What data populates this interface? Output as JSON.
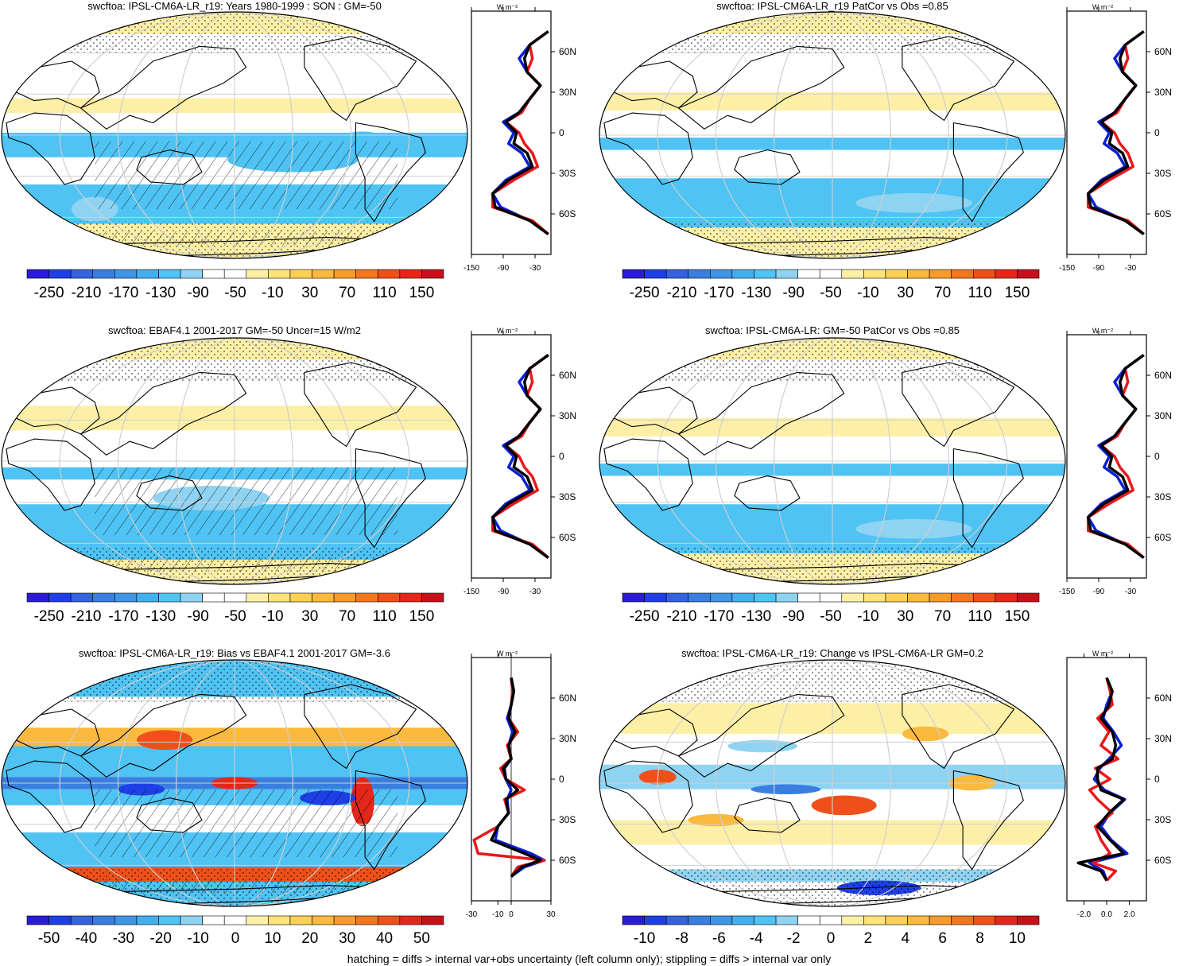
{
  "figure": {
    "footer": "hatching = diffs > internal var+obs uncertainty (left column only); stippling = diffs > internal var only",
    "colorbar_colors": [
      "#2b1bd6",
      "#1f3fe6",
      "#3563e0",
      "#3a7fdf",
      "#3f95e6",
      "#43b0ee",
      "#4fc3f3",
      "#8fd3f2",
      "#ffffff",
      "#ffffff",
      "#fdf0a6",
      "#fde37a",
      "#fccf55",
      "#fbb93d",
      "#f99b2b",
      "#f5761f",
      "#ef5019",
      "#e3281a",
      "#c8101a"
    ],
    "profile_colors": {
      "model": "#0a1fd6",
      "obs": "#e8181a",
      "ensemble": "#000000"
    }
  },
  "chart_data": [
    {
      "type": "heatmap",
      "id": "p1",
      "title": "swcftoa: IPSL-CM6A-LR_r19: Years 1980-1999 : SON : GM=-50",
      "map_style": "mean",
      "hatching": true,
      "colorbar_ticks": [
        "-250",
        "-210",
        "-170",
        "-130",
        "-90",
        "-50",
        "-10",
        "30",
        "70",
        "110",
        "150"
      ],
      "profile": {
        "units": "W m⁻²",
        "xlim": [
          -150,
          0
        ],
        "xticks": [
          "-150",
          "-90",
          "-30"
        ],
        "xtick_values": [
          -150,
          -90,
          -30
        ],
        "ylabels": [
          "60N",
          "30N",
          "0",
          "30S",
          "60S"
        ],
        "ylabel_lats": [
          60,
          30,
          0,
          -30,
          -60
        ],
        "zero_line": false,
        "lat": [
          75,
          65,
          55,
          45,
          35,
          25,
          15,
          8,
          0,
          -8,
          -15,
          -25,
          -35,
          -45,
          -55,
          -65,
          -75
        ],
        "model": [
          -5,
          -40,
          -60,
          -45,
          -20,
          -40,
          -60,
          -90,
          -70,
          -80,
          -55,
          -40,
          -85,
          -110,
          -95,
          -40,
          -5
        ],
        "obs": [
          -5,
          -40,
          -35,
          -45,
          -20,
          -40,
          -55,
          -85,
          -60,
          -50,
          -35,
          -25,
          -70,
          -110,
          -110,
          -35,
          -5
        ],
        "ensemble": [
          -5,
          -40,
          -50,
          -45,
          -20,
          -40,
          -60,
          -85,
          -65,
          -70,
          -45,
          -35,
          -80,
          -110,
          -105,
          -40,
          -5
        ]
      }
    },
    {
      "type": "heatmap",
      "id": "p2",
      "title": "swcftoa: IPSL-CM6A-LR_r19 PatCor vs Obs =0.85",
      "map_style": "ensemble",
      "hatching": false,
      "colorbar_ticks": [
        "-250",
        "-210",
        "-170",
        "-130",
        "-90",
        "-50",
        "-10",
        "30",
        "70",
        "110",
        "150"
      ],
      "profile": {
        "units": "W m⁻²",
        "xlim": [
          -150,
          0
        ],
        "xticks": [
          "-150",
          "-90",
          "-30"
        ],
        "xtick_values": [
          -150,
          -90,
          -30
        ],
        "ylabels": [
          "60N",
          "30N",
          "0",
          "30S",
          "60S"
        ],
        "ylabel_lats": [
          60,
          30,
          0,
          -30,
          -60
        ],
        "zero_line": false,
        "lat": [
          75,
          65,
          55,
          45,
          35,
          25,
          15,
          8,
          0,
          -8,
          -15,
          -25,
          -35,
          -45,
          -55,
          -65,
          -75
        ],
        "model": [
          -5,
          -40,
          -60,
          -45,
          -20,
          -40,
          -60,
          -90,
          -70,
          -80,
          -55,
          -40,
          -85,
          -110,
          -95,
          -40,
          -5
        ],
        "obs": [
          -5,
          -40,
          -35,
          -45,
          -20,
          -40,
          -55,
          -85,
          -60,
          -50,
          -35,
          -25,
          -70,
          -110,
          -110,
          -35,
          -5
        ],
        "ensemble": [
          -5,
          -40,
          -50,
          -45,
          -20,
          -40,
          -60,
          -85,
          -65,
          -70,
          -45,
          -35,
          -80,
          -110,
          -105,
          -40,
          -5
        ]
      }
    },
    {
      "type": "heatmap",
      "id": "p3",
      "title": "swcftoa: EBAF4.1 2001-2017 GM=-50 Uncer=15 W/m2",
      "map_style": "obs",
      "hatching": true,
      "colorbar_ticks": [
        "-250",
        "-210",
        "-170",
        "-130",
        "-90",
        "-50",
        "-10",
        "30",
        "70",
        "110",
        "150"
      ],
      "profile": {
        "units": "W m⁻²",
        "xlim": [
          -150,
          0
        ],
        "xticks": [
          "-150",
          "-90",
          "-30"
        ],
        "xtick_values": [
          -150,
          -90,
          -30
        ],
        "ylabels": [
          "60N",
          "30N",
          "0",
          "30S",
          "60S"
        ],
        "ylabel_lats": [
          60,
          30,
          0,
          -30,
          -60
        ],
        "zero_line": false,
        "lat": [
          75,
          65,
          55,
          45,
          35,
          25,
          15,
          8,
          0,
          -8,
          -15,
          -25,
          -35,
          -45,
          -55,
          -65,
          -75
        ],
        "model": [
          -5,
          -40,
          -60,
          -45,
          -20,
          -40,
          -60,
          -90,
          -70,
          -80,
          -55,
          -40,
          -85,
          -110,
          -95,
          -40,
          -5
        ],
        "obs": [
          -5,
          -40,
          -35,
          -45,
          -20,
          -40,
          -55,
          -85,
          -60,
          -50,
          -35,
          -25,
          -70,
          -110,
          -110,
          -35,
          -5
        ],
        "ensemble": [
          -5,
          -40,
          -50,
          -45,
          -20,
          -40,
          -60,
          -85,
          -65,
          -70,
          -45,
          -35,
          -80,
          -110,
          -105,
          -40,
          -5
        ]
      }
    },
    {
      "type": "heatmap",
      "id": "p4",
      "title": "swcftoa: IPSL-CM6A-LR: GM=-50 PatCor vs Obs =0.85",
      "map_style": "ensemble",
      "hatching": false,
      "colorbar_ticks": [
        "-250",
        "-210",
        "-170",
        "-130",
        "-90",
        "-50",
        "-10",
        "30",
        "70",
        "110",
        "150"
      ],
      "profile": {
        "units": "W m⁻²",
        "xlim": [
          -150,
          0
        ],
        "xticks": [
          "-150",
          "-90",
          "-30"
        ],
        "xtick_values": [
          -150,
          -90,
          -30
        ],
        "ylabels": [
          "60N",
          "30N",
          "0",
          "30S",
          "60S"
        ],
        "ylabel_lats": [
          60,
          30,
          0,
          -30,
          -60
        ],
        "zero_line": false,
        "lat": [
          75,
          65,
          55,
          45,
          35,
          25,
          15,
          8,
          0,
          -8,
          -15,
          -25,
          -35,
          -45,
          -55,
          -65,
          -75
        ],
        "model": [
          -5,
          -40,
          -60,
          -45,
          -20,
          -40,
          -60,
          -90,
          -70,
          -80,
          -55,
          -40,
          -85,
          -110,
          -95,
          -40,
          -5
        ],
        "obs": [
          -5,
          -40,
          -35,
          -45,
          -20,
          -40,
          -55,
          -85,
          -60,
          -50,
          -35,
          -25,
          -70,
          -110,
          -110,
          -35,
          -5
        ],
        "ensemble": [
          -5,
          -40,
          -50,
          -45,
          -20,
          -40,
          -60,
          -85,
          -65,
          -70,
          -45,
          -35,
          -80,
          -110,
          -105,
          -40,
          -5
        ]
      }
    },
    {
      "type": "heatmap",
      "id": "p5",
      "title": "swcftoa: IPSL-CM6A-LR_r19: Bias vs EBAF4.1 2001-2017  GM=-3.6",
      "map_style": "bias",
      "hatching": true,
      "colorbar_ticks": [
        "-50",
        "-40",
        "-30",
        "-20",
        "-10",
        "0",
        "10",
        "20",
        "30",
        "40",
        "50"
      ],
      "profile": {
        "units": "W m⁻²",
        "xlim": [
          -30,
          30
        ],
        "xticks": [
          "-30",
          "-10",
          "0",
          "30"
        ],
        "xtick_values": [
          -30,
          -10,
          0,
          30
        ],
        "ylabels": [
          "60N",
          "30N",
          "0",
          "30S",
          "60S"
        ],
        "ylabel_lats": [
          60,
          30,
          0,
          -30,
          -60
        ],
        "zero_line": true,
        "lat": [
          75,
          65,
          55,
          45,
          35,
          25,
          15,
          8,
          0,
          -8,
          -15,
          -25,
          -35,
          -45,
          -55,
          -60,
          -65,
          -72
        ],
        "model": [
          0,
          2,
          0,
          -3,
          1,
          -2,
          0,
          -5,
          -4,
          0,
          -3,
          -2,
          -10,
          -12,
          15,
          25,
          10,
          0
        ],
        "obs": [
          0,
          1,
          0,
          -2,
          5,
          -3,
          0,
          -8,
          -4,
          10,
          -5,
          -2,
          -10,
          -28,
          -25,
          25,
          5,
          0
        ],
        "ensemble": [
          0,
          2,
          0,
          -2,
          3,
          -2,
          0,
          -6,
          -4,
          5,
          -4,
          -2,
          -10,
          -15,
          10,
          22,
          8,
          0
        ]
      }
    },
    {
      "type": "heatmap",
      "id": "p6",
      "title": "swcftoa: IPSL-CM6A-LR_r19: Change vs IPSL-CM6A-LR GM=0.2",
      "map_style": "change",
      "hatching": false,
      "colorbar_ticks": [
        "-10",
        "-8",
        "-6",
        "-4",
        "-2",
        "0",
        "2",
        "4",
        "6",
        "8",
        "10"
      ],
      "profile": {
        "units": "W m⁻²",
        "xlim": [
          -3.5,
          3.5
        ],
        "xticks": [
          "-2.0",
          "0.0",
          "2.0"
        ],
        "xtick_values": [
          -2,
          0,
          2
        ],
        "ylabels": [
          "60N",
          "30N",
          "0",
          "30S",
          "60S"
        ],
        "ylabel_lats": [
          60,
          30,
          0,
          -30,
          -60
        ],
        "zero_line": false,
        "lat": [
          75,
          65,
          55,
          45,
          35,
          25,
          15,
          8,
          0,
          -8,
          -15,
          -25,
          -35,
          -45,
          -55,
          -62,
          -68,
          -75
        ],
        "model": [
          0,
          0.5,
          0,
          -0.3,
          0.6,
          1.3,
          0.2,
          -0.6,
          -1.1,
          -0.2,
          1.6,
          0.3,
          -0.5,
          0.4,
          1.8,
          -1.5,
          -0.3,
          0
        ],
        "obs": [
          0,
          0.3,
          0.5,
          -0.8,
          0.2,
          -0.5,
          1.0,
          -1.0,
          0.3,
          -1.5,
          -0.8,
          0.5,
          -1.0,
          -0.5,
          0.3,
          -1.2,
          0.8,
          0
        ],
        "ensemble": [
          0,
          0.5,
          0.2,
          -0.5,
          0.5,
          0.8,
          0.5,
          -0.8,
          -0.8,
          -0.5,
          1.5,
          0.2,
          -0.8,
          0.3,
          1.5,
          -2.5,
          -0.5,
          0
        ]
      }
    }
  ]
}
